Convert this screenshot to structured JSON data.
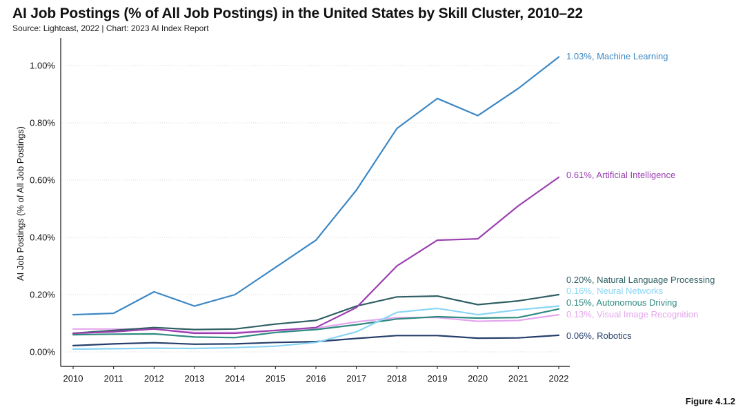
{
  "title": "AI Job Postings (% of All Job Postings) in the United States by Skill Cluster, 2010–22",
  "subtitle": "Source: Lightcast, 2022 | Chart: 2023 AI Index Report",
  "figure_label": "Figure 4.1.2",
  "chart_data": {
    "type": "line",
    "title": "AI Job Postings (% of All Job Postings) in the United States by Skill Cluster, 2010–22",
    "xlabel": "",
    "ylabel": "AI Job Postings (% of All Job Postings)",
    "ylim": [
      0,
      1.1
    ],
    "grid": true,
    "x": [
      2010,
      2011,
      2012,
      2013,
      2014,
      2015,
      2016,
      2017,
      2018,
      2019,
      2020,
      2021,
      2022
    ],
    "y_ticks": [
      0,
      0.2,
      0.4,
      0.6,
      0.8,
      1.0
    ],
    "y_tick_labels": [
      "0.00%",
      "0.20%",
      "0.40%",
      "0.60%",
      "0.80%",
      "1.00%"
    ],
    "series": [
      {
        "name": "Machine Learning",
        "color": "#3b87c4",
        "end_label": "1.03%, Machine Learning",
        "values": [
          0.13,
          0.135,
          0.21,
          0.16,
          0.2,
          0.295,
          0.39,
          0.565,
          0.78,
          0.885,
          0.825,
          0.92,
          1.03
        ]
      },
      {
        "name": "Artificial Intelligence",
        "color": "#9b3fb0",
        "end_label": "0.61%, Artificial Intelligence",
        "values": [
          0.065,
          0.07,
          0.08,
          0.065,
          0.065,
          0.075,
          0.085,
          0.155,
          0.3,
          0.39,
          0.395,
          0.51,
          0.61
        ]
      },
      {
        "name": "Natural Language Processing",
        "color": "#2f5f63",
        "end_label": "0.20%, Natural Language Processing",
        "values": [
          0.065,
          0.075,
          0.085,
          0.078,
          0.08,
          0.097,
          0.11,
          0.16,
          0.192,
          0.195,
          0.165,
          0.178,
          0.2
        ]
      },
      {
        "name": "Neural Networks",
        "color": "#8ad5f5",
        "end_label": "0.16%, Neural Networks",
        "values": [
          0.01,
          0.011,
          0.013,
          0.012,
          0.015,
          0.02,
          0.033,
          0.07,
          0.138,
          0.152,
          0.13,
          0.147,
          0.16
        ]
      },
      {
        "name": "Autonomous Driving",
        "color": "#2e8a7f",
        "end_label": "0.15%, Autonomous Driving",
        "values": [
          0.06,
          0.062,
          0.063,
          0.052,
          0.05,
          0.068,
          0.078,
          0.095,
          0.115,
          0.123,
          0.118,
          0.12,
          0.15
        ]
      },
      {
        "name": "Visual Image Recognition",
        "color": "#e5a6ee",
        "end_label": "0.13%, Visual Image Recognition",
        "values": [
          0.08,
          0.08,
          0.08,
          0.068,
          0.068,
          0.075,
          0.083,
          0.105,
          0.12,
          0.12,
          0.107,
          0.11,
          0.13
        ]
      },
      {
        "name": "Robotics",
        "color": "#253e6b",
        "end_label": "0.06%, Robotics",
        "values": [
          0.022,
          0.028,
          0.032,
          0.027,
          0.028,
          0.033,
          0.036,
          0.047,
          0.057,
          0.057,
          0.048,
          0.049,
          0.058
        ]
      }
    ]
  }
}
